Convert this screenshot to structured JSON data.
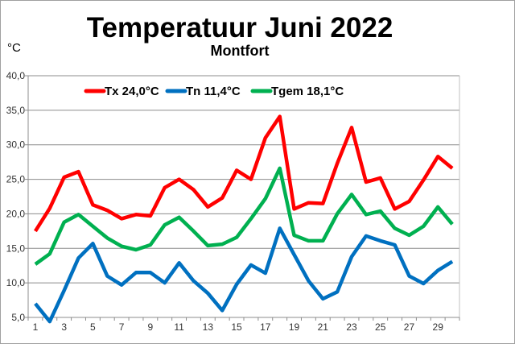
{
  "chart_data": {
    "type": "line",
    "title": "Temperatuur Juni 2022",
    "subtitle": "Montfort",
    "ylabel": "°C",
    "xlabel": "",
    "ylim": [
      5,
      40
    ],
    "yticks": [
      "5,0",
      "10,0",
      "15,0",
      "20,0",
      "25,0",
      "30,0",
      "35,0",
      "40,0"
    ],
    "ytick_values": [
      5,
      10,
      15,
      20,
      25,
      30,
      35,
      40
    ],
    "x": [
      1,
      2,
      3,
      4,
      5,
      6,
      7,
      8,
      9,
      10,
      11,
      12,
      13,
      14,
      15,
      16,
      17,
      18,
      19,
      20,
      21,
      22,
      23,
      24,
      25,
      26,
      27,
      28,
      29,
      30
    ],
    "xtick_labels": [
      "1",
      "3",
      "5",
      "7",
      "9",
      "11",
      "13",
      "15",
      "17",
      "19",
      "21",
      "23",
      "25",
      "27",
      "29"
    ],
    "grid": true,
    "legend_position": "top",
    "series": [
      {
        "name": "Tx 24,0°C",
        "color": "#ff0000",
        "values": [
          17.5,
          20.8,
          25.3,
          26.1,
          21.3,
          20.5,
          19.3,
          19.9,
          19.7,
          23.8,
          25.0,
          23.5,
          21.0,
          22.3,
          26.3,
          25.0,
          31.0,
          34.1,
          20.7,
          21.6,
          21.5,
          27.3,
          32.5,
          24.6,
          25.2,
          20.7,
          21.8,
          24.9,
          28.3,
          26.6
        ]
      },
      {
        "name": "Tn 11,4°C",
        "color": "#0070c0",
        "values": [
          7.0,
          4.4,
          8.9,
          13.6,
          15.7,
          11.0,
          9.7,
          11.5,
          11.5,
          10.0,
          12.9,
          10.3,
          8.5,
          6.0,
          9.8,
          12.6,
          11.4,
          17.9,
          14.1,
          10.3,
          7.7,
          8.7,
          13.8,
          16.8,
          16.1,
          15.5,
          11.0,
          9.9,
          11.8,
          13.1
        ]
      },
      {
        "name": "Tgem 18,1°C",
        "color": "#00b050",
        "values": [
          12.7,
          14.2,
          18.8,
          19.9,
          18.2,
          16.5,
          15.3,
          14.8,
          15.5,
          18.4,
          19.5,
          17.5,
          15.4,
          15.6,
          16.6,
          19.3,
          22.2,
          26.6,
          16.9,
          16.1,
          16.1,
          20.0,
          22.8,
          19.9,
          20.4,
          17.9,
          16.9,
          18.2,
          21.0,
          18.5
        ]
      }
    ]
  }
}
